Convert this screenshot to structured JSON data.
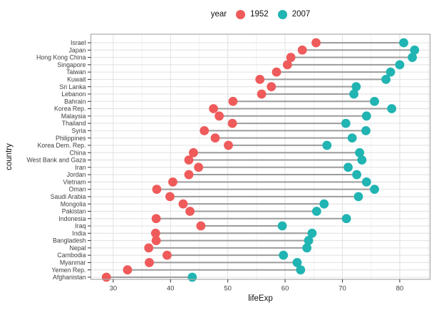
{
  "legend": {
    "title": "year",
    "items": [
      {
        "label": "1952",
        "color": "#EF5A5A"
      },
      {
        "label": "2007",
        "color": "#20B4B2"
      }
    ]
  },
  "axes": {
    "x_title": "lifeExp",
    "y_title": "country"
  },
  "chart_data": {
    "type": "scatter",
    "variant": "dumbbell",
    "title": "",
    "xlabel": "lifeExp",
    "ylabel": "country",
    "xlim": [
      26.1,
      85.3
    ],
    "x_major_ticks": [
      30,
      40,
      50,
      60,
      70,
      80
    ],
    "x_minor_gridlines": [
      35,
      45,
      55,
      65,
      75,
      85
    ],
    "grid": true,
    "legend_title": "year",
    "legend_position": "top",
    "categories": [
      "Israel",
      "Japan",
      "Hong Kong China",
      "Singapore",
      "Taiwan",
      "Kuwait",
      "Sri Lanka",
      "Lebanon",
      "Bahrain",
      "Korea Rep.",
      "Malaysia",
      "Thailand",
      "Syria",
      "Philippines",
      "Korea Dem. Rep.",
      "China",
      "West Bank and Gaza",
      "Iran",
      "Jordan",
      "Vietnam",
      "Oman",
      "Saudi Arabia",
      "Mongolia",
      "Pakistan",
      "Indonesia",
      "Iraq",
      "India",
      "Bangladesh",
      "Nepal",
      "Cambodia",
      "Myanmar",
      "Yemen Rep.",
      "Afghanistan"
    ],
    "series": [
      {
        "name": "1952",
        "color": "#EF5A5A",
        "values": [
          65.4,
          63.0,
          61.0,
          60.4,
          58.5,
          55.6,
          57.6,
          55.9,
          50.9,
          47.5,
          48.5,
          50.8,
          45.9,
          47.8,
          50.1,
          44.0,
          43.2,
          44.9,
          43.2,
          40.4,
          37.6,
          39.9,
          42.2,
          43.4,
          37.5,
          45.3,
          37.4,
          37.5,
          36.2,
          39.4,
          36.3,
          32.5,
          28.8
        ]
      },
      {
        "name": "2007",
        "color": "#20B4B2",
        "values": [
          80.7,
          82.6,
          82.2,
          80.0,
          78.4,
          77.6,
          72.4,
          72.0,
          75.6,
          78.6,
          74.2,
          70.6,
          74.1,
          71.7,
          67.3,
          73.0,
          73.4,
          71.0,
          72.5,
          74.2,
          75.6,
          72.8,
          66.8,
          65.5,
          70.7,
          59.5,
          64.7,
          64.1,
          63.8,
          59.7,
          62.1,
          62.7,
          43.8
        ]
      }
    ],
    "style": {
      "background": "#FFFFFF",
      "panel_border": "#A9A9A9",
      "grid_major": "#E3E3E3",
      "grid_minor": "#F1F1F1",
      "connector": "#9C9C9C",
      "tick": "#333333",
      "tick_label": "#404040",
      "title_text": "#111111"
    }
  }
}
